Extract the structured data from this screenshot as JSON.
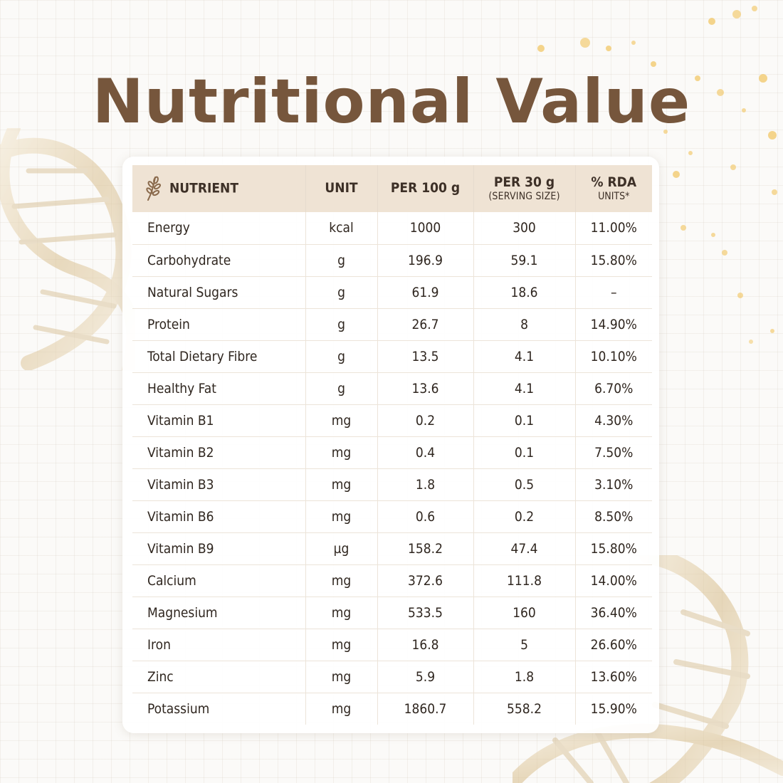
{
  "title": "Nutritional Value",
  "colors": {
    "title": "#76563c",
    "header_bg": "#efe3d4",
    "text": "#2f261f"
  },
  "header": {
    "nutrient": "NUTRIENT",
    "unit": "UNIT",
    "per100": "PER 100 g",
    "per30": "PER 30 g",
    "per30_sub": "(SERVING SIZE)",
    "rda": "% RDA",
    "rda_sub": "UNITS*"
  },
  "rows": [
    {
      "nutrient": "Energy",
      "unit": "kcal",
      "per100": "1000",
      "per30": "300",
      "rda": "11.00%"
    },
    {
      "nutrient": "Carbohydrate",
      "unit": "g",
      "per100": "196.9",
      "per30": "59.1",
      "rda": "15.80%"
    },
    {
      "nutrient": "Natural Sugars",
      "unit": "g",
      "per100": "61.9",
      "per30": "18.6",
      "rda": "–"
    },
    {
      "nutrient": "Protein",
      "unit": "g",
      "per100": "26.7",
      "per30": "8",
      "rda": "14.90%"
    },
    {
      "nutrient": "Total Dietary Fibre",
      "unit": "g",
      "per100": "13.5",
      "per30": "4.1",
      "rda": "10.10%"
    },
    {
      "nutrient": "Healthy Fat",
      "unit": "g",
      "per100": "13.6",
      "per30": "4.1",
      "rda": "6.70%"
    },
    {
      "nutrient": "Vitamin B1",
      "unit": "mg",
      "per100": "0.2",
      "per30": "0.1",
      "rda": "4.30%"
    },
    {
      "nutrient": "Vitamin B2",
      "unit": "mg",
      "per100": "0.4",
      "per30": "0.1",
      "rda": "7.50%"
    },
    {
      "nutrient": "Vitamin B3",
      "unit": "mg",
      "per100": "1.8",
      "per30": "0.5",
      "rda": "3.10%"
    },
    {
      "nutrient": "Vitamin B6",
      "unit": "mg",
      "per100": "0.6",
      "per30": "0.2",
      "rda": "8.50%"
    },
    {
      "nutrient": "Vitamin B9",
      "unit": "µg",
      "per100": "158.2",
      "per30": "47.4",
      "rda": "15.80%"
    },
    {
      "nutrient": "Calcium",
      "unit": "mg",
      "per100": "372.6",
      "per30": "111.8",
      "rda": "14.00%"
    },
    {
      "nutrient": "Magnesium",
      "unit": "mg",
      "per100": "533.5",
      "per30": "160",
      "rda": "36.40%"
    },
    {
      "nutrient": "Iron",
      "unit": "mg",
      "per100": "16.8",
      "per30": "5",
      "rda": "26.60%"
    },
    {
      "nutrient": "Zinc",
      "unit": "mg",
      "per100": "5.9",
      "per30": "1.8",
      "rda": "13.60%"
    },
    {
      "nutrient": "Potassium",
      "unit": "mg",
      "per100": "1860.7",
      "per30": "558.2",
      "rda": "15.90%"
    }
  ]
}
